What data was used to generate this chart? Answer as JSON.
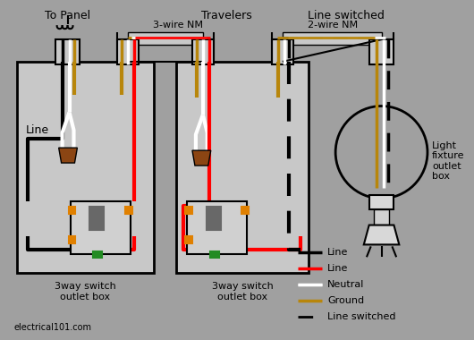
{
  "bg_color": "#a0a0a0",
  "box_color": "#c8c8c8",
  "box_edge_color": "#000000",
  "label_top_panel": "To Panel",
  "label_travelers": "Travelers",
  "label_line_switched": "Line switched",
  "label_3wire": "3-wire NM",
  "label_2wire": "2-wire NM",
  "label_line_left": "Line",
  "label_switch1": "3way switch\noutlet box",
  "label_switch2": "3way switch\noutlet box",
  "label_light": "Light\nfixture\noutlet\nbox",
  "label_website": "electrical101.com",
  "legend_items": [
    {
      "color": "#000000",
      "label": "Line",
      "dashed": false
    },
    {
      "color": "#ff0000",
      "label": "Line",
      "dashed": false
    },
    {
      "color": "#ffffff",
      "label": "Neutral",
      "dashed": false
    },
    {
      "color": "#b8860b",
      "label": "Ground",
      "dashed": false
    }
  ],
  "legend_dashed_label": "Line switched",
  "colors": {
    "black": "#000000",
    "red": "#ff0000",
    "white": "#ffffff",
    "yellow": "#b8860b",
    "brown": "#8B4513",
    "green": "#228B22",
    "orange": "#e08000",
    "gray_switch": "#909090",
    "gray_toggle": "#686868"
  }
}
